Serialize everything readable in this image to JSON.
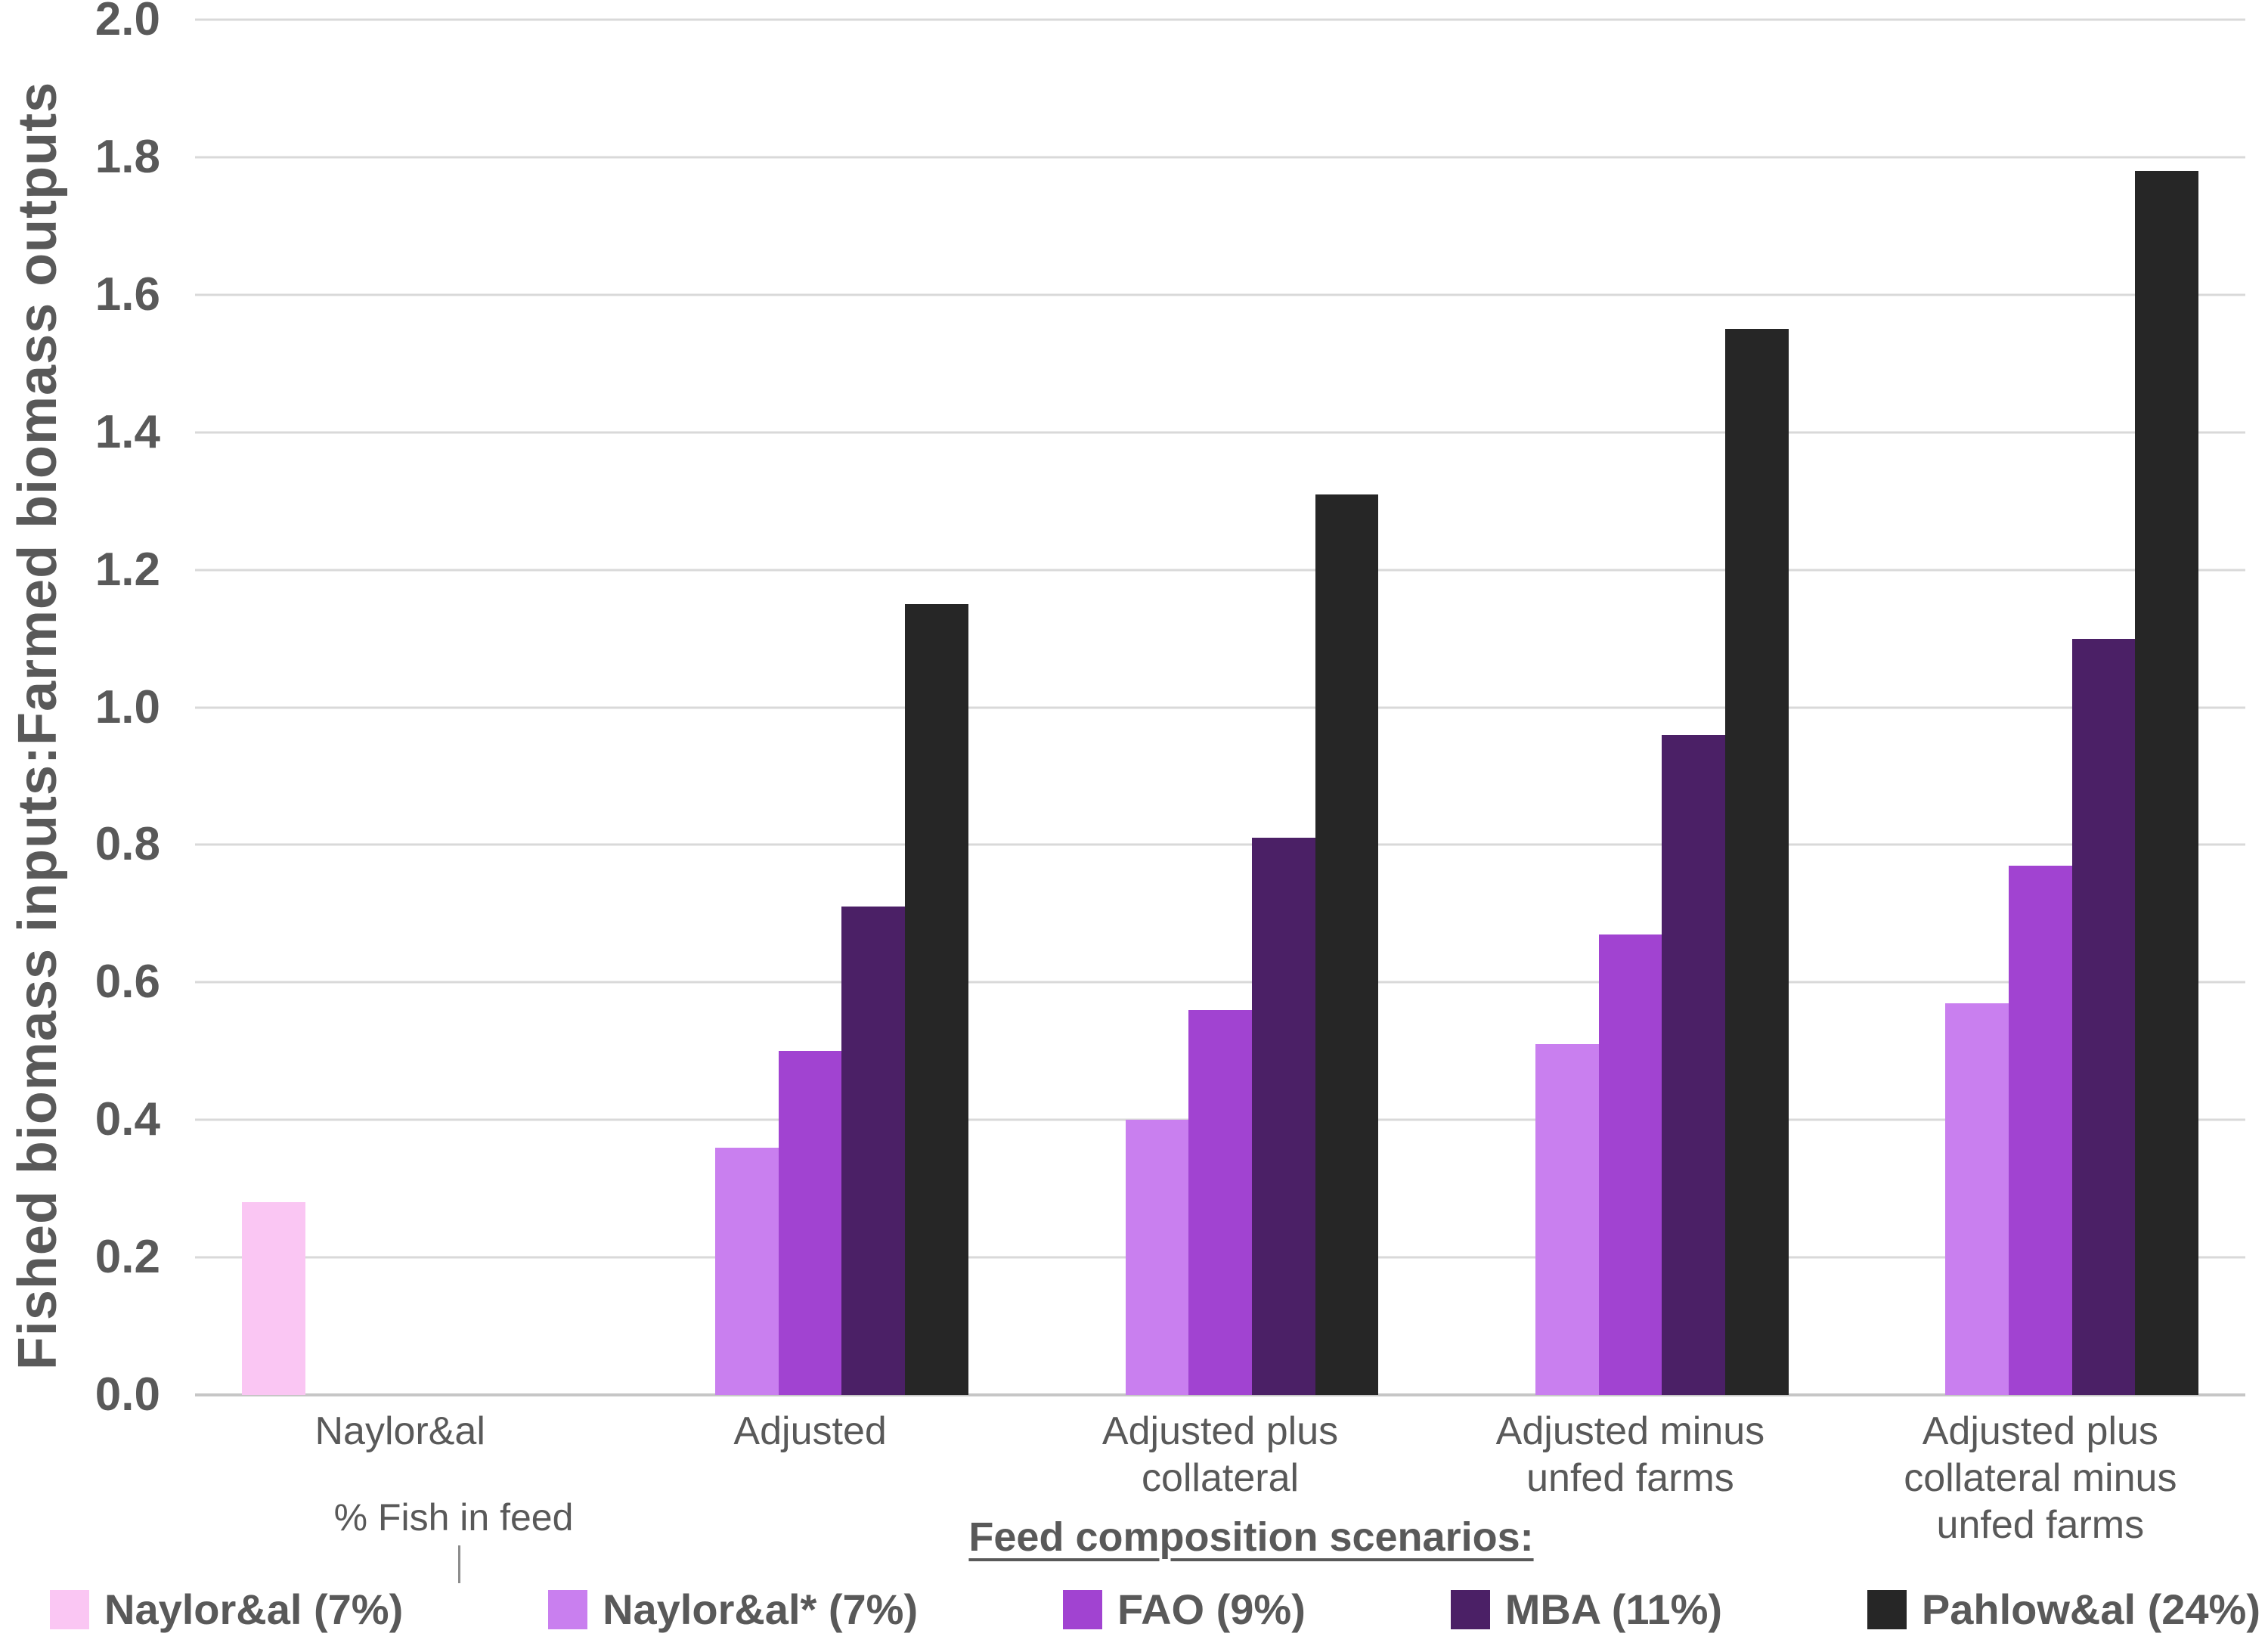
{
  "page": {
    "background": "#ffffff",
    "text_color": "#595959"
  },
  "chart_data": {
    "type": "bar",
    "title": "",
    "ylabel": "Fished biomass inputs:Farmed biomass outputs",
    "x_axis_title": "Feed composition scenarios:",
    "annotation": "% Fish in feed",
    "ylim": [
      0,
      2.0
    ],
    "ytick_step": 0.2,
    "yticks": [
      "0.0",
      "0.2",
      "0.4",
      "0.6",
      "0.8",
      "1.0",
      "1.2",
      "1.4",
      "1.6",
      "1.8",
      "2.0"
    ],
    "grid": "horizontal",
    "grid_color": "#D9D9D9",
    "baseline_color": "#C6C6C6",
    "legend_position": "bottom",
    "categories": [
      [
        "Naylor&al"
      ],
      [
        "Adjusted"
      ],
      [
        "Adjusted plus",
        "collateral"
      ],
      [
        "Adjusted minus",
        "unfed farms"
      ],
      [
        "Adjusted plus",
        "collateral minus",
        "unfed farms"
      ]
    ],
    "series": [
      {
        "name": "Naylor&al (7%)",
        "color": "#FAC6F3",
        "values": [
          0.28,
          null,
          null,
          null,
          null
        ]
      },
      {
        "name": "Naylor&al* (7%)",
        "color": "#C97FEF",
        "values": [
          null,
          0.36,
          0.4,
          0.51,
          0.57
        ]
      },
      {
        "name": "FAO (9%)",
        "color": "#A143D1",
        "values": [
          null,
          0.5,
          0.56,
          0.67,
          0.77
        ]
      },
      {
        "name": "MBA (11%)",
        "color": "#4B2066",
        "values": [
          null,
          0.71,
          0.81,
          0.96,
          1.1
        ]
      },
      {
        "name": "Pahlow&al (24%)",
        "color": "#262626",
        "values": [
          null,
          1.15,
          1.31,
          1.55,
          1.78
        ]
      }
    ]
  }
}
